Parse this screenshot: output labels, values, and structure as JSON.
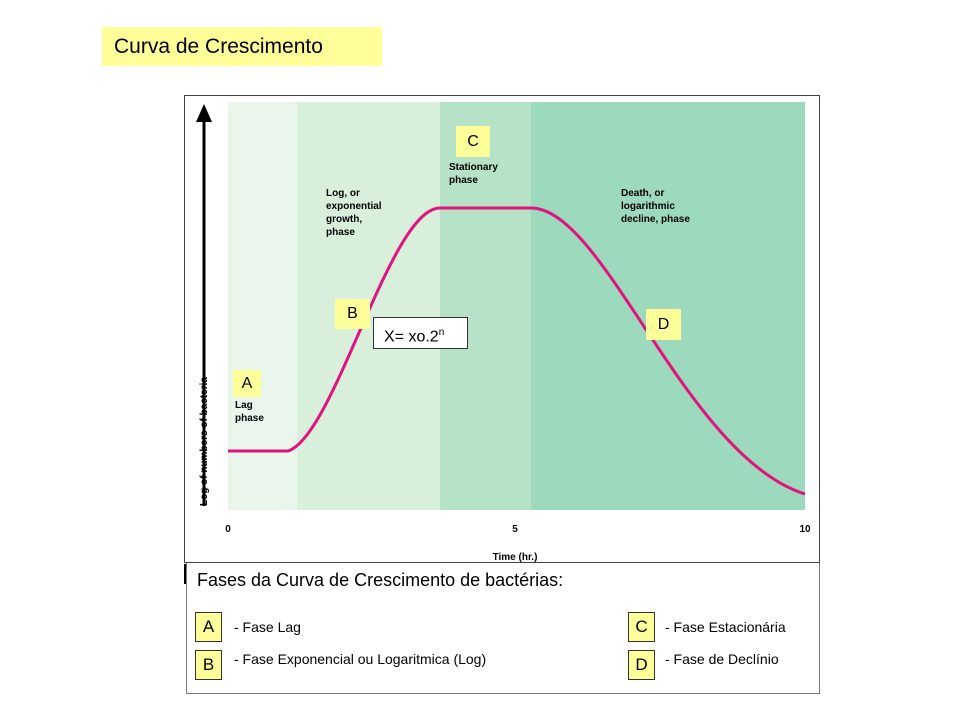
{
  "title": "Curva de Crescimento",
  "figure": {
    "phase_labels": [
      {
        "line1": "Lag",
        "line2": "phase"
      },
      {
        "line1": "Log, or",
        "line2": "exponential",
        "line3": "growth,",
        "line4": "phase"
      },
      {
        "line1": "Stationary",
        "line2": "phase"
      },
      {
        "line1": "Death, or",
        "line2": "logarithmic",
        "line3": "decline, phase"
      }
    ],
    "y_axis_label": "Log of numbers of bacteria",
    "x_axis_label": "Time (hr.)",
    "x_ticks": [
      "0",
      "5",
      "10"
    ],
    "tags": {
      "a": "A",
      "b": "B",
      "c": "C",
      "d": "D"
    },
    "formula_main": "X= xo.2",
    "formula_exp": "n",
    "colors": {
      "lag_band": "#eaf5ec",
      "log_band": "#d8efdb",
      "stationary_band": "#b6e2c7",
      "death_band": "#9dd9bc",
      "curve": "#e0147f",
      "tag_fill": "#ffff99"
    }
  },
  "legend": {
    "heading": "Fases da Curva de Crescimento de bactérias:",
    "items": [
      {
        "tag": "A",
        "text": "- Fase Lag"
      },
      {
        "tag": "B",
        "text": "- Fase Exponencial ou Logaritmica (Log)"
      },
      {
        "tag": "C",
        "text": "- Fase Estacionária"
      },
      {
        "tag": "D",
        "text": "- Fase de Declínio"
      }
    ]
  }
}
